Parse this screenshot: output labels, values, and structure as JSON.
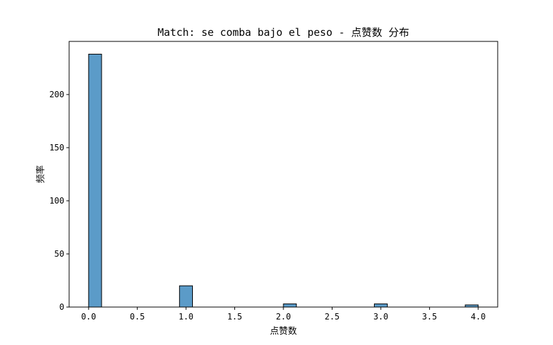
{
  "chart_data": {
    "type": "bar",
    "title": "Match: se comba bajo el peso - 点赞数 分布",
    "xlabel": "点赞数",
    "ylabel": "频率",
    "xlim": [
      -0.2,
      4.2
    ],
    "ylim": [
      0,
      250
    ],
    "xticks": [
      "0.0",
      "0.5",
      "1.0",
      "1.5",
      "2.0",
      "2.5",
      "3.0",
      "3.5",
      "4.0"
    ],
    "yticks": [
      "0",
      "50",
      "100",
      "150",
      "200"
    ],
    "bin_width": 0.1333,
    "bins": [
      {
        "x0": 0.0,
        "x1": 0.1333,
        "count": 238
      },
      {
        "x0": 0.9333,
        "x1": 1.0667,
        "count": 20
      },
      {
        "x0": 2.0,
        "x1": 2.1333,
        "count": 3
      },
      {
        "x0": 2.9333,
        "x1": 3.0667,
        "count": 3
      },
      {
        "x0": 3.8667,
        "x1": 4.0,
        "count": 2
      }
    ],
    "bar_color": "#5b9bc8",
    "edge_color": "#000000",
    "grid": false,
    "legend": "none"
  }
}
